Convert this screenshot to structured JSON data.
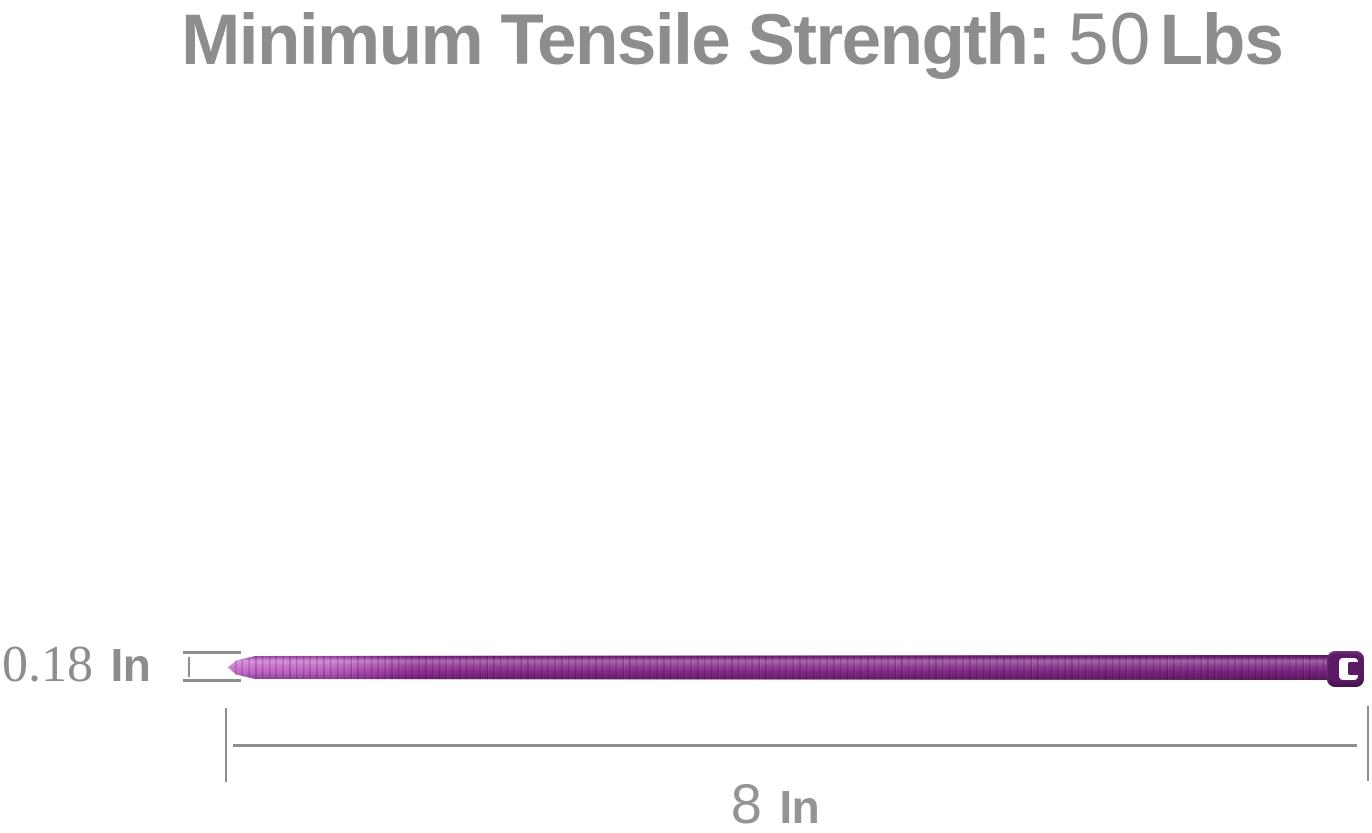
{
  "title": {
    "label": "Minimum Tensile Strength:",
    "value": "50",
    "unit": "Lbs"
  },
  "product": {
    "kind": "purple nylon cable zip tie",
    "orientation": "horizontal, head on right, tapered tail tip on left"
  },
  "dimension_width": {
    "value": "0.18",
    "unit": "In"
  },
  "dimension_length": {
    "value": "8",
    "unit": "In"
  },
  "colors": {
    "text_gray": "#8d8d8d",
    "line_gray": "#8e8e8e",
    "tie_tip": "#c465c8",
    "tie_body": "#872b8b",
    "tie_head": "#5c1a66",
    "slot_white": "#ffffff"
  }
}
